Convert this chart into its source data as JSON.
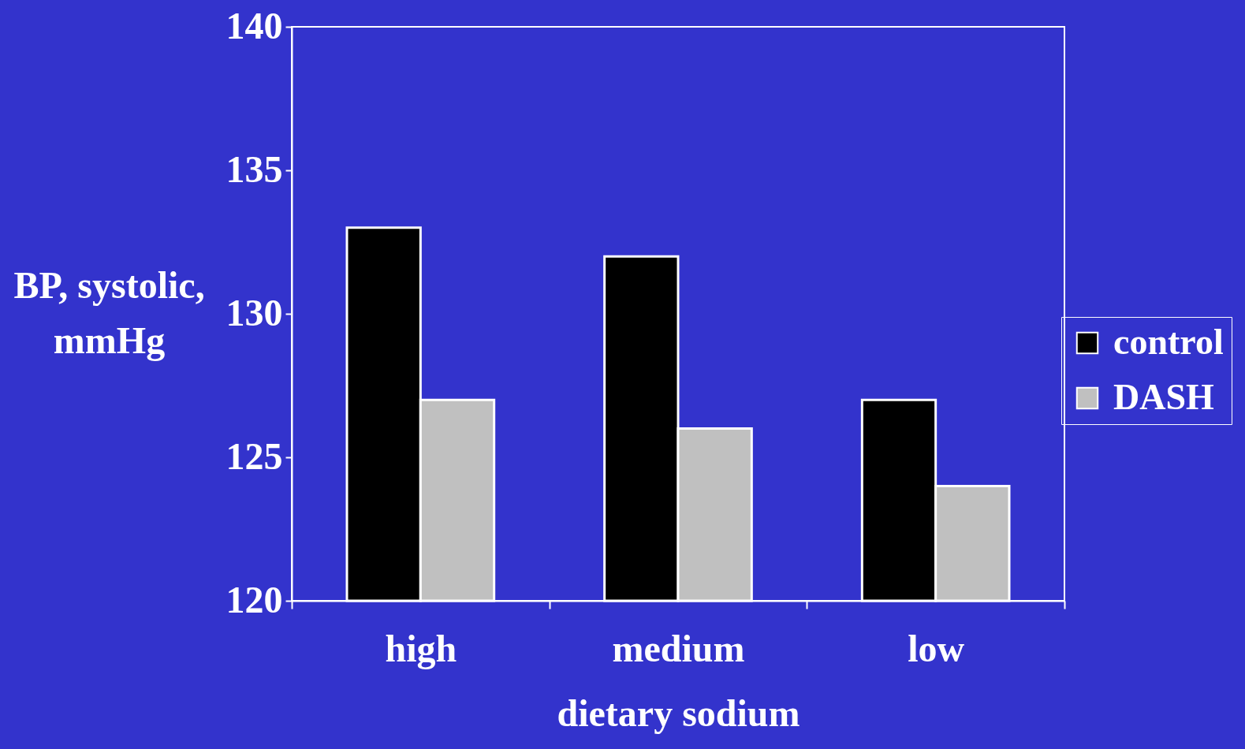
{
  "chart_data": {
    "type": "bar",
    "xlabel": "dietary sodium",
    "ylabel": "BP, systolic,\nmmHg",
    "categories": [
      "high",
      "medium",
      "low"
    ],
    "series": [
      {
        "name": "control",
        "color": "#000000",
        "values": [
          133,
          132,
          127
        ]
      },
      {
        "name": "DASH",
        "color": "#c0c0c0",
        "values": [
          127,
          126,
          124
        ]
      }
    ],
    "ylim": [
      120,
      140
    ],
    "yticks": [
      120,
      125,
      130,
      135,
      140
    ],
    "legend": "right"
  }
}
